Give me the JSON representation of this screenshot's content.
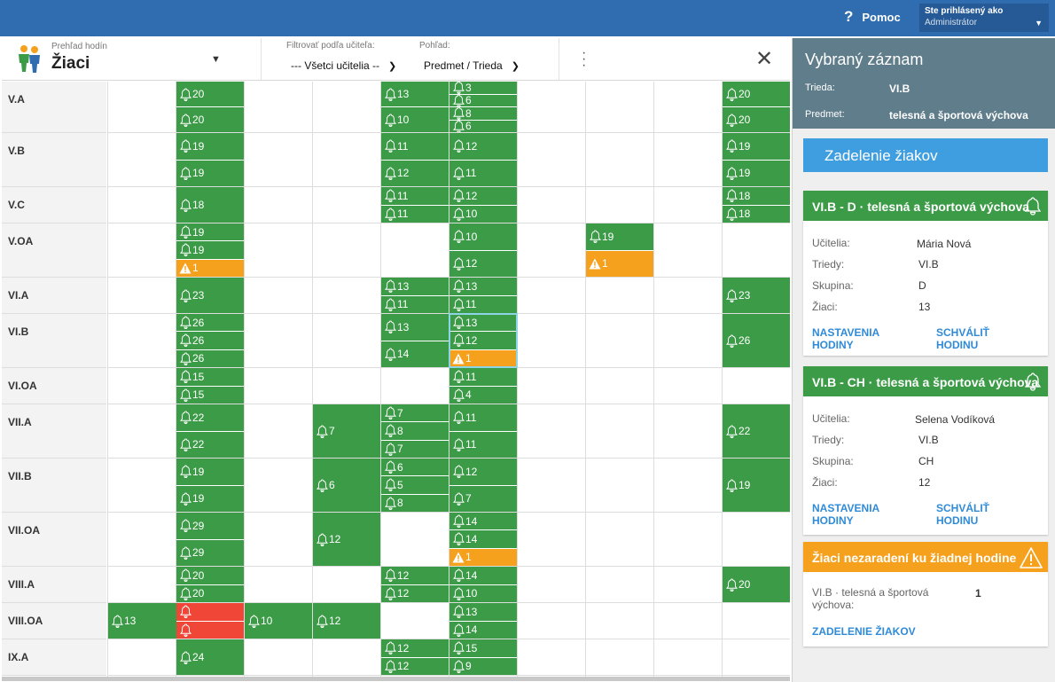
{
  "header": {
    "help_label": "Pomoc",
    "user_title": "Ste prihlásený ako",
    "user_name": "Administrátor"
  },
  "toolbar": {
    "overview_label": "Prehľad hodín",
    "overview_value": "Žiaci",
    "filter_label": "Filtrovať podľa učiteľa:",
    "filter_value": "--- Všetci učitelia --",
    "view_label": "Pohľad:",
    "view_value": "Predmet / Trieda"
  },
  "grid": {
    "rows": [
      {
        "label": "V.A",
        "h": 58,
        "cells": [
          {
            "c": 1,
            "v": [
              "20",
              "20"
            ]
          },
          {
            "c": 4,
            "v": [
              "13",
              "10"
            ]
          },
          {
            "c": 5,
            "v": [
              "3",
              "6",
              "8",
              "6"
            ]
          },
          {
            "c": 9,
            "v": [
              "20",
              "20"
            ]
          }
        ]
      },
      {
        "label": "V.B",
        "h": 61,
        "cells": [
          {
            "c": 1,
            "v": [
              "19",
              "19"
            ]
          },
          {
            "c": 4,
            "v": [
              "11",
              "12"
            ]
          },
          {
            "c": 5,
            "v": [
              "12",
              "11"
            ]
          },
          {
            "c": 9,
            "v": [
              "19",
              "19"
            ]
          }
        ]
      },
      {
        "label": "V.C",
        "h": 41,
        "cells": [
          {
            "c": 1,
            "v": [
              "18"
            ]
          },
          {
            "c": 4,
            "v": [
              "11",
              "11"
            ]
          },
          {
            "c": 5,
            "v": [
              "12",
              "10"
            ]
          },
          {
            "c": 9,
            "v": [
              "18",
              "18"
            ]
          }
        ]
      },
      {
        "label": "V.OA",
        "h": 61,
        "cells": [
          {
            "c": 1,
            "v": [
              "19",
              "19",
              "!1"
            ]
          },
          {
            "c": 5,
            "v": [
              "10",
              "12"
            ]
          },
          {
            "c": 7,
            "v": [
              "19",
              "!1"
            ]
          }
        ]
      },
      {
        "label": "VI.A",
        "h": 41,
        "cells": [
          {
            "c": 1,
            "v": [
              "23"
            ]
          },
          {
            "c": 4,
            "v": [
              "13",
              "11"
            ]
          },
          {
            "c": 5,
            "v": [
              "13",
              "11"
            ]
          },
          {
            "c": 9,
            "v": [
              "23"
            ]
          }
        ]
      },
      {
        "label": "VI.B",
        "h": 61,
        "cells": [
          {
            "c": 1,
            "v": [
              "26",
              "26",
              "26"
            ]
          },
          {
            "c": 4,
            "v": [
              "13",
              "14"
            ]
          },
          {
            "c": 5,
            "v": [
              "13",
              "12",
              "!1"
            ],
            "sel": true
          },
          {
            "c": 9,
            "v": [
              "26"
            ]
          }
        ]
      },
      {
        "label": "VI.OA",
        "h": 41,
        "cells": [
          {
            "c": 1,
            "v": [
              "15",
              "15"
            ]
          },
          {
            "c": 5,
            "v": [
              "11",
              "4"
            ]
          }
        ]
      },
      {
        "label": "VII.A",
        "h": 61,
        "cells": [
          {
            "c": 1,
            "v": [
              "22",
              "22"
            ]
          },
          {
            "c": 3,
            "v": [
              "7"
            ]
          },
          {
            "c": 4,
            "v": [
              "7",
              "8",
              "7"
            ]
          },
          {
            "c": 5,
            "v": [
              "11",
              "11"
            ]
          },
          {
            "c": 9,
            "v": [
              "22"
            ]
          }
        ]
      },
      {
        "label": "VII.B",
        "h": 61,
        "cells": [
          {
            "c": 1,
            "v": [
              "19",
              "19"
            ]
          },
          {
            "c": 3,
            "v": [
              "6"
            ]
          },
          {
            "c": 4,
            "v": [
              "6",
              "5",
              "8"
            ]
          },
          {
            "c": 5,
            "v": [
              "12",
              "7"
            ]
          },
          {
            "c": 9,
            "v": [
              "19"
            ]
          }
        ]
      },
      {
        "label": "VII.OA",
        "h": 61,
        "cells": [
          {
            "c": 1,
            "v": [
              "29",
              "29"
            ]
          },
          {
            "c": 3,
            "v": [
              "12"
            ]
          },
          {
            "c": 5,
            "v": [
              "14",
              "14",
              "!1"
            ]
          }
        ]
      },
      {
        "label": "VIII.A",
        "h": 41,
        "cells": [
          {
            "c": 1,
            "v": [
              "20",
              "20"
            ]
          },
          {
            "c": 4,
            "v": [
              "12",
              "12"
            ]
          },
          {
            "c": 5,
            "v": [
              "14",
              "10"
            ]
          },
          {
            "c": 9,
            "v": [
              "20"
            ]
          }
        ]
      },
      {
        "label": "VIII.OA",
        "h": 41,
        "cells": [
          {
            "c": 0,
            "v": [
              "13"
            ]
          },
          {
            "c": 1,
            "v": [
              "x",
              "x"
            ]
          },
          {
            "c": 2,
            "v": [
              "10"
            ]
          },
          {
            "c": 3,
            "v": [
              "12"
            ]
          },
          {
            "c": 5,
            "v": [
              "13",
              "14"
            ]
          }
        ]
      },
      {
        "label": "IX.A",
        "h": 41,
        "cells": [
          {
            "c": 1,
            "v": [
              "24"
            ]
          },
          {
            "c": 4,
            "v": [
              "12",
              "12"
            ]
          },
          {
            "c": 5,
            "v": [
              "15",
              "9"
            ]
          }
        ]
      }
    ]
  },
  "panel": {
    "title": "Vybraný záznam",
    "class_label": "Trieda:",
    "class_value": "VI.B",
    "subject_label": "Predmet:",
    "subject_value": "telesná a športová výchova",
    "assign_button": "Zadelenie žiakov",
    "cards": [
      {
        "title": "VI.B - D · telesná a športová výchova",
        "teacher_label": "Učitelia:",
        "teacher": "Mária Nová",
        "classes_label": "Triedy:",
        "classes": "VI.B",
        "group_label": "Skupina:",
        "group": "D",
        "students_label": "Žiaci:",
        "students": "13",
        "settings_1": "NASTAVENIA",
        "settings_2": "HODINY",
        "approve_1": "SCHVÁLIŤ",
        "approve_2": "HODINU"
      },
      {
        "title": "VI.B - CH · telesná a športová výchova",
        "teacher_label": "Učitelia:",
        "teacher": "Selena Vodíková",
        "classes_label": "Triedy:",
        "classes": "VI.B",
        "group_label": "Skupina:",
        "group": "CH",
        "students_label": "Žiaci:",
        "students": "12",
        "settings_1": "NASTAVENIA",
        "settings_2": "HODINY",
        "approve_1": "SCHVÁLIŤ",
        "approve_2": "HODINU"
      }
    ],
    "unassigned": {
      "title": "Žiaci nezaradení ku žiadnej hodine",
      "item_line1": "VI.B · telesná a športová",
      "item_line2": "výchova:",
      "item_count": "1",
      "link": "ZADELENIE ŽIAKOV"
    }
  }
}
